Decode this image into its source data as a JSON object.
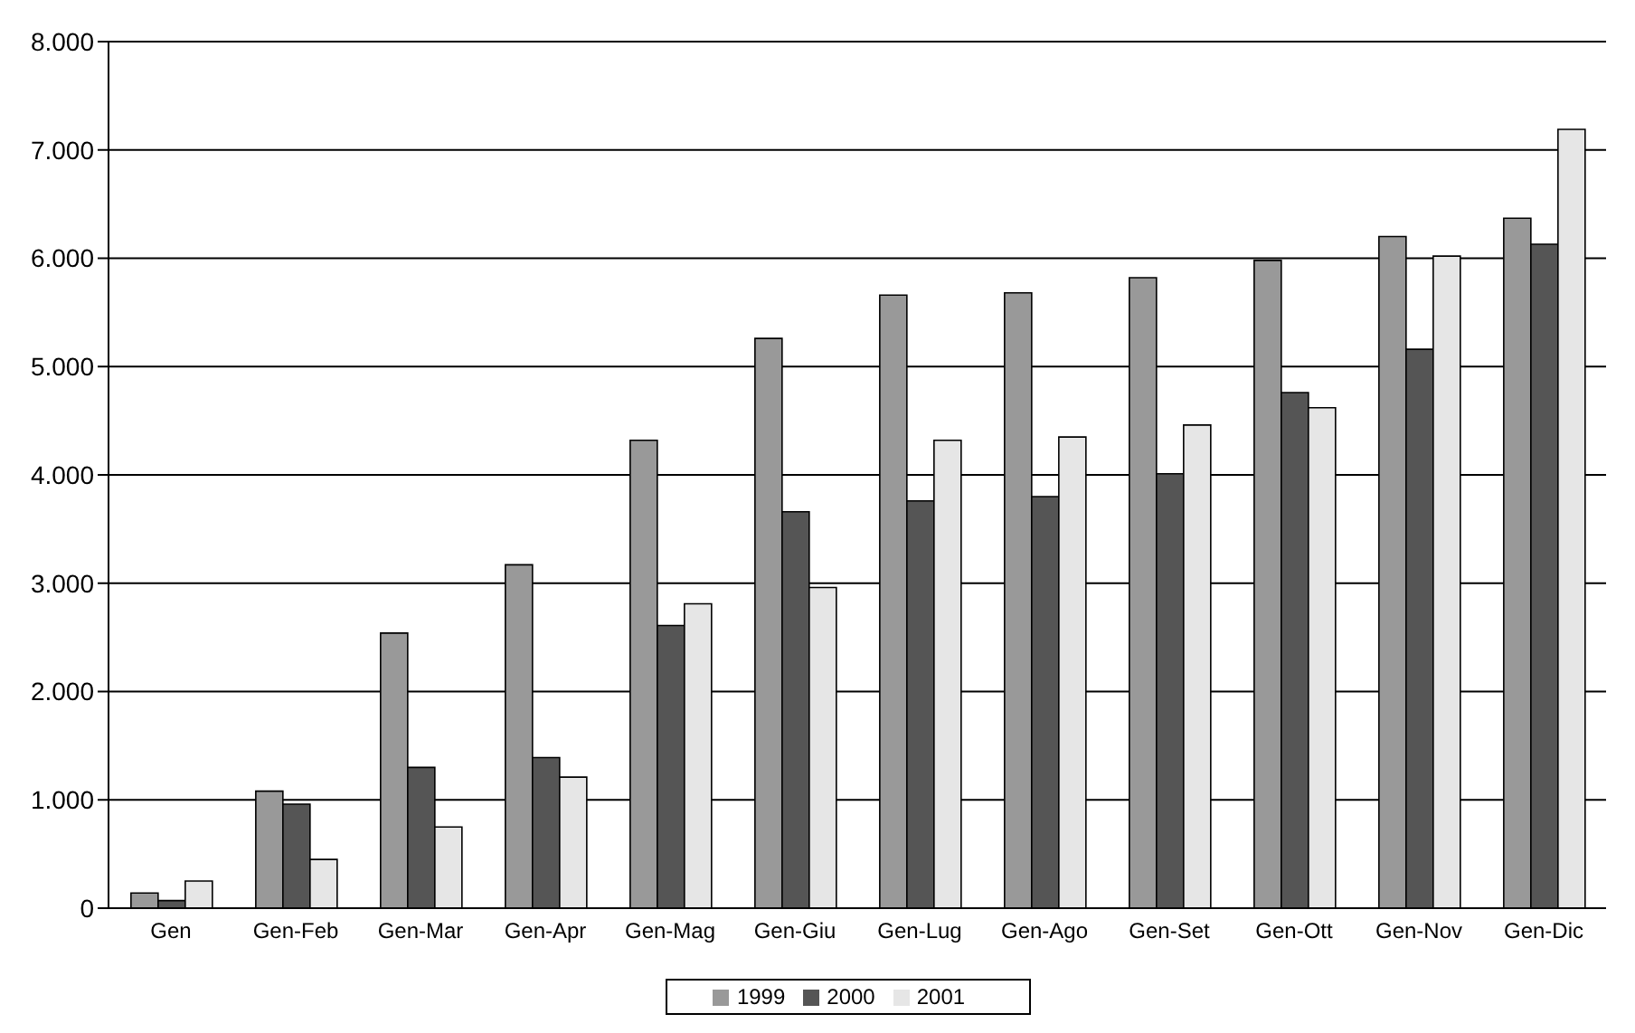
{
  "chart_data": {
    "type": "bar",
    "categories": [
      "Gen",
      "Gen-Feb",
      "Gen-Mar",
      "Gen-Apr",
      "Gen-Mag",
      "Gen-Giu",
      "Gen-Lug",
      "Gen-Ago",
      "Gen-Set",
      "Gen-Ott",
      "Gen-Nov",
      "Gen-Dic"
    ],
    "series": [
      {
        "name": "1999",
        "color": "#999999",
        "values": [
          140,
          1080,
          2540,
          3170,
          4320,
          5260,
          5660,
          5680,
          5820,
          5980,
          6200,
          6370
        ]
      },
      {
        "name": "2000",
        "color": "#555555",
        "values": [
          70,
          960,
          1300,
          1390,
          2610,
          3660,
          3760,
          3800,
          4010,
          4760,
          5160,
          6130
        ]
      },
      {
        "name": "2001",
        "color": "#e6e6e6",
        "values": [
          250,
          450,
          750,
          1210,
          2810,
          2960,
          4320,
          4350,
          4460,
          4620,
          6020,
          7190
        ]
      }
    ],
    "ylim": [
      0,
      8000
    ],
    "yticks": [
      0,
      {
        "value": 1000,
        "label": "1.000"
      },
      {
        "value": 2000,
        "label": "2.000"
      },
      {
        "value": 3000,
        "label": "3.000"
      },
      {
        "value": 4000,
        "label": "4.000"
      },
      {
        "value": 5000,
        "label": "5.000"
      },
      {
        "value": 6000,
        "label": "6.000"
      },
      {
        "value": 7000,
        "label": "7.000"
      },
      {
        "value": 8000,
        "label": "8.000"
      }
    ],
    "grid": "y",
    "legend": "bottom"
  }
}
